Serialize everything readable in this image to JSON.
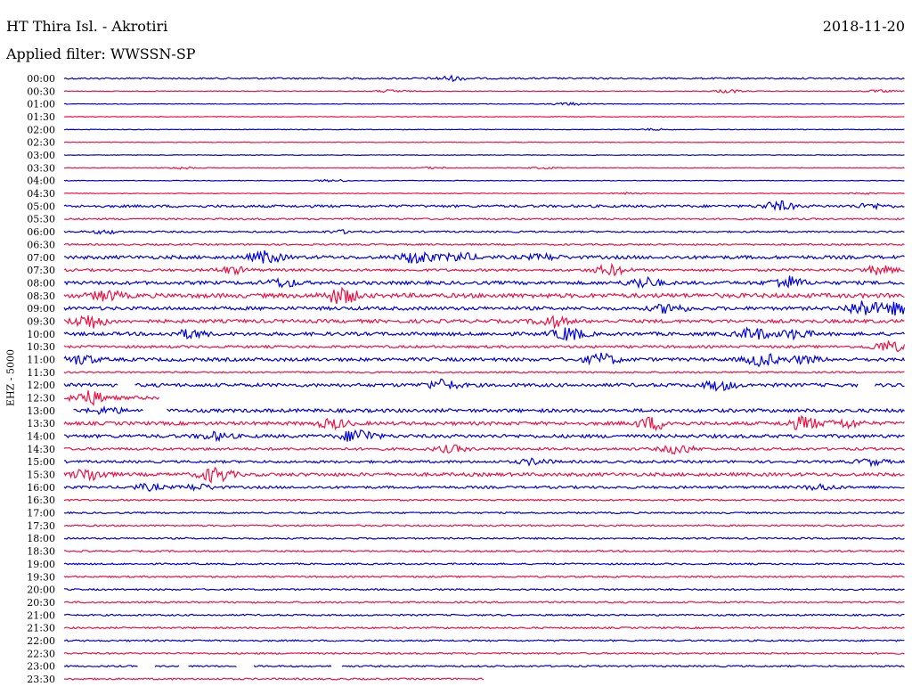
{
  "header": {
    "station": "HT Thira Isl. - Akrotiri",
    "date": "2018-11-20",
    "filter": "Applied filter: WWSSN-SP"
  },
  "chart_data": {
    "type": "line",
    "title": "HT Thira Isl. - Akrotiri",
    "date": "2018-11-20",
    "filter": "WWSSN-SP",
    "ylabel": "EHZ - 5000",
    "grid": false,
    "colors": [
      "#0000dd",
      "#ee1144"
    ],
    "rows": [
      {
        "time": "00:00",
        "level": 1,
        "events": [
          [
            0.46,
            0.8
          ]
        ],
        "gaps": []
      },
      {
        "time": "00:30",
        "level": 0,
        "events": [
          [
            0.39,
            0.5
          ],
          [
            0.79,
            0.6
          ],
          [
            0.97,
            0.4
          ]
        ],
        "gaps": []
      },
      {
        "time": "01:00",
        "level": 0,
        "events": [
          [
            0.6,
            0.5
          ]
        ],
        "gaps": []
      },
      {
        "time": "01:30",
        "level": 0,
        "events": [],
        "gaps": []
      },
      {
        "time": "02:00",
        "level": 0,
        "events": [
          [
            0.7,
            0.3
          ]
        ],
        "gaps": []
      },
      {
        "time": "02:30",
        "level": 0,
        "events": [],
        "gaps": []
      },
      {
        "time": "03:00",
        "level": 0,
        "events": [],
        "gaps": []
      },
      {
        "time": "03:30",
        "level": 0,
        "events": [
          [
            0.14,
            0.4
          ],
          [
            0.44,
            0.3
          ],
          [
            0.57,
            0.3
          ]
        ],
        "gaps": []
      },
      {
        "time": "04:00",
        "level": 0,
        "events": [
          [
            0.32,
            0.4
          ]
        ],
        "gaps": []
      },
      {
        "time": "04:30",
        "level": 0,
        "events": [
          [
            0.67,
            0.3
          ],
          [
            0.95,
            0.3
          ]
        ],
        "gaps": []
      },
      {
        "time": "05:00",
        "level": 2,
        "events": [
          [
            0.85,
            1.6
          ],
          [
            0.96,
            0.8
          ]
        ],
        "gaps": []
      },
      {
        "time": "05:30",
        "level": 1,
        "events": [],
        "gaps": []
      },
      {
        "time": "06:00",
        "level": 1,
        "events": [
          [
            0.05,
            0.6
          ],
          [
            0.33,
            0.5
          ]
        ],
        "gaps": []
      },
      {
        "time": "06:30",
        "level": 1,
        "events": [],
        "gaps": []
      },
      {
        "time": "07:00",
        "level": 3,
        "events": [
          [
            0.24,
            2.0
          ],
          [
            0.42,
            2.2
          ],
          [
            0.47,
            1.4
          ],
          [
            0.57,
            0.9
          ]
        ],
        "gaps": []
      },
      {
        "time": "07:30",
        "level": 2,
        "events": [
          [
            0.2,
            1.2
          ],
          [
            0.65,
            1.8
          ],
          [
            0.97,
            1.5
          ]
        ],
        "gaps": []
      },
      {
        "time": "08:00",
        "level": 3,
        "events": [
          [
            0.26,
            1.4
          ],
          [
            0.69,
            1.8
          ],
          [
            0.86,
            2.2
          ]
        ],
        "gaps": []
      },
      {
        "time": "08:30",
        "level": 4,
        "events": [
          [
            0.05,
            1.6
          ],
          [
            0.33,
            2.8
          ]
        ],
        "gaps": []
      },
      {
        "time": "09:00",
        "level": 3,
        "events": [
          [
            0.72,
            1.6
          ],
          [
            0.95,
            2.8
          ],
          [
            0.99,
            2.0
          ]
        ],
        "gaps": []
      },
      {
        "time": "09:30",
        "level": 3,
        "events": [
          [
            0.03,
            2.6
          ],
          [
            0.58,
            1.8
          ]
        ],
        "gaps": []
      },
      {
        "time": "10:00",
        "level": 3,
        "events": [
          [
            0.15,
            1.4
          ],
          [
            0.6,
            2.3
          ],
          [
            0.82,
            2.0
          ],
          [
            0.87,
            1.6
          ]
        ],
        "gaps": []
      },
      {
        "time": "10:30",
        "level": 2,
        "events": [
          [
            0.98,
            2.0
          ]
        ],
        "gaps": []
      },
      {
        "time": "11:00",
        "level": 3,
        "events": [
          [
            0.02,
            1.6
          ],
          [
            0.64,
            2.0
          ],
          [
            0.83,
            2.2
          ],
          [
            0.88,
            1.2
          ]
        ],
        "gaps": []
      },
      {
        "time": "11:30",
        "level": 1,
        "events": [],
        "gaps": []
      },
      {
        "time": "12:00",
        "level": 3,
        "events": [
          [
            0.45,
            1.8
          ],
          [
            0.78,
            1.6
          ]
        ],
        "gaps": [
          [
            0.065,
            0.083
          ],
          [
            0.944,
            0.963
          ]
        ]
      },
      {
        "time": "12:30",
        "level": 3,
        "events": [
          [
            0.03,
            2.4
          ]
        ],
        "gaps": [
          [
            0.113,
            1.0
          ]
        ]
      },
      {
        "time": "13:00",
        "level": 3,
        "events": [
          [
            0.05,
            1.0
          ]
        ],
        "gaps": [
          [
            0.0,
            0.01
          ],
          [
            0.094,
            0.122
          ]
        ]
      },
      {
        "time": "13:30",
        "level": 3,
        "events": [
          [
            0.32,
            1.6
          ],
          [
            0.7,
            2.2
          ],
          [
            0.88,
            2.3
          ],
          [
            0.93,
            1.4
          ]
        ],
        "gaps": []
      },
      {
        "time": "14:00",
        "level": 3,
        "events": [
          [
            0.18,
            1.2
          ],
          [
            0.35,
            2.6
          ]
        ],
        "gaps": []
      },
      {
        "time": "14:30",
        "level": 2,
        "events": [
          [
            0.46,
            1.2
          ],
          [
            0.73,
            1.6
          ]
        ],
        "gaps": []
      },
      {
        "time": "15:00",
        "level": 2,
        "events": [
          [
            0.56,
            1.0
          ],
          [
            0.96,
            1.0
          ]
        ],
        "gaps": []
      },
      {
        "time": "15:30",
        "level": 3,
        "events": [
          [
            0.03,
            2.2
          ],
          [
            0.18,
            2.6
          ]
        ],
        "gaps": []
      },
      {
        "time": "16:00",
        "level": 2,
        "events": [
          [
            0.1,
            1.0
          ],
          [
            0.16,
            1.0
          ],
          [
            0.9,
            1.0
          ]
        ],
        "gaps": []
      },
      {
        "time": "16:30",
        "level": 1,
        "events": [],
        "gaps": []
      },
      {
        "time": "17:00",
        "level": 1,
        "events": [],
        "gaps": []
      },
      {
        "time": "17:30",
        "level": 1,
        "events": [],
        "gaps": []
      },
      {
        "time": "18:00",
        "level": 1,
        "events": [],
        "gaps": []
      },
      {
        "time": "18:30",
        "level": 1,
        "events": [],
        "gaps": []
      },
      {
        "time": "19:00",
        "level": 1,
        "events": [],
        "gaps": []
      },
      {
        "time": "19:30",
        "level": 1,
        "events": [],
        "gaps": []
      },
      {
        "time": "20:00",
        "level": 1,
        "events": [],
        "gaps": []
      },
      {
        "time": "20:30",
        "level": 1,
        "events": [],
        "gaps": []
      },
      {
        "time": "21:00",
        "level": 1,
        "events": [],
        "gaps": []
      },
      {
        "time": "21:30",
        "level": 1,
        "events": [],
        "gaps": []
      },
      {
        "time": "22:00",
        "level": 1,
        "events": [],
        "gaps": []
      },
      {
        "time": "22:30",
        "level": 1,
        "events": [],
        "gaps": []
      },
      {
        "time": "23:00",
        "level": 1,
        "events": [],
        "gaps": [
          [
            0.088,
            0.108
          ],
          [
            0.138,
            0.147
          ],
          [
            0.205,
            0.225
          ],
          [
            0.318,
            0.33
          ]
        ]
      },
      {
        "time": "23:30",
        "level": 1,
        "events": [],
        "gaps": [
          [
            0.5,
            1.0
          ]
        ]
      }
    ]
  }
}
